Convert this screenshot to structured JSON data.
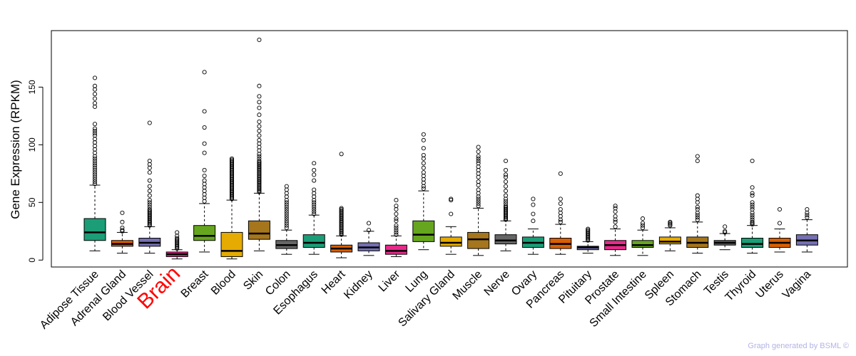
{
  "chart_data": {
    "type": "boxplot",
    "title": "",
    "xlabel": "",
    "ylabel": "Gene Expression (RPKM)",
    "ylim": [
      -6,
      199
    ],
    "yticks": [
      0,
      50,
      100,
      150
    ],
    "highlight_category": "Brain",
    "highlight_color": "#ff0000",
    "categories": [
      "Adipose Tissue",
      "Adrenal Gland",
      "Blood Vessel",
      "Brain",
      "Breast",
      "Blood",
      "Skin",
      "Colon",
      "Esophagus",
      "Heart",
      "Kidney",
      "Liver",
      "Lung",
      "Salivary Gland",
      "Muscle",
      "Nerve",
      "Ovary",
      "Pancreas",
      "Pituitary",
      "Prostate",
      "Small Intestine",
      "Spleen",
      "Stomach",
      "Testis",
      "Thyroid",
      "Uterus",
      "Vagina"
    ],
    "colors": [
      "#1b9e77",
      "#d95f02",
      "#7570b3",
      "#e7298a",
      "#66a61e",
      "#e6ab02",
      "#a6761d",
      "#666666",
      "#1b9e77",
      "#d95f02",
      "#7570b3",
      "#e7298a",
      "#66a61e",
      "#e6ab02",
      "#a6761d",
      "#666666",
      "#1b9e77",
      "#d95f02",
      "#7570b3",
      "#e7298a",
      "#66a61e",
      "#e6ab02",
      "#a6761d",
      "#666666",
      "#1b9e77",
      "#d95f02",
      "#7570b3"
    ],
    "boxes": [
      {
        "q1": 17,
        "median": 24,
        "q3": 36,
        "whisker_low": 8,
        "whisker_high": 65,
        "outliers": [
          66,
          68,
          70,
          72,
          74,
          76,
          78,
          80,
          82,
          84,
          86,
          88,
          90,
          93,
          96,
          99,
          102,
          105,
          108,
          110,
          112,
          114,
          118,
          133,
          136,
          140,
          144,
          148,
          151,
          158
        ]
      },
      {
        "q1": 12,
        "median": 14,
        "q3": 17,
        "whisker_low": 6,
        "whisker_high": 24,
        "outliers": [
          25,
          26,
          28,
          33,
          41
        ]
      },
      {
        "q1": 12,
        "median": 15,
        "q3": 19,
        "whisker_low": 6,
        "whisker_high": 29,
        "outliers": [
          30,
          31,
          32,
          33,
          34,
          35,
          36,
          37,
          38,
          39,
          40,
          41,
          42,
          43,
          44,
          46,
          48,
          50,
          52,
          56,
          60,
          64,
          69,
          76,
          80,
          83,
          86,
          119
        ]
      },
      {
        "q1": 3,
        "median": 5,
        "q3": 7,
        "whisker_low": 1,
        "whisker_high": 9,
        "outliers": [
          10,
          11,
          12,
          13,
          14,
          15,
          16,
          17,
          18,
          19,
          21,
          24
        ]
      },
      {
        "q1": 17,
        "median": 21,
        "q3": 30,
        "whisker_low": 7,
        "whisker_high": 49,
        "outliers": [
          51,
          54,
          57,
          60,
          63,
          66,
          69,
          73,
          78,
          93,
          101,
          115,
          129,
          163
        ]
      },
      {
        "q1": 3,
        "median": 8,
        "q3": 24,
        "whisker_low": 1,
        "whisker_high": 52,
        "outliers": [
          53,
          54,
          55,
          56,
          57,
          58,
          59,
          60,
          61,
          62,
          63,
          64,
          65,
          66,
          67,
          68,
          69,
          70,
          71,
          72,
          73,
          74,
          75,
          76,
          77,
          78,
          79,
          80,
          81,
          82,
          83,
          84,
          85,
          86,
          87,
          88
        ]
      },
      {
        "q1": 18,
        "median": 23,
        "q3": 34,
        "whisker_low": 8,
        "whisker_high": 58,
        "outliers": [
          59,
          60,
          61,
          62,
          63,
          64,
          65,
          66,
          67,
          68,
          69,
          70,
          71,
          72,
          73,
          74,
          75,
          76,
          77,
          78,
          79,
          80,
          81,
          82,
          83,
          84,
          85,
          86,
          88,
          90,
          92,
          95,
          98,
          101,
          104,
          108,
          112,
          116,
          120,
          126,
          132,
          137,
          142,
          151,
          191
        ]
      },
      {
        "q1": 10,
        "median": 13,
        "q3": 17,
        "whisker_low": 5,
        "whisker_high": 26,
        "outliers": [
          28,
          30,
          32,
          34,
          36,
          38,
          40,
          42,
          44,
          46,
          48,
          50,
          52,
          55,
          58,
          61,
          64
        ]
      },
      {
        "q1": 11,
        "median": 15,
        "q3": 22,
        "whisker_low": 5,
        "whisker_high": 39,
        "outliers": [
          40,
          42,
          44,
          46,
          48,
          50,
          52,
          55,
          58,
          61,
          69,
          74,
          78,
          84
        ]
      },
      {
        "q1": 7,
        "median": 10,
        "q3": 13,
        "whisker_low": 2,
        "whisker_high": 21,
        "outliers": [
          22,
          23,
          24,
          25,
          26,
          27,
          28,
          29,
          30,
          31,
          32,
          33,
          34,
          35,
          36,
          37,
          38,
          39,
          40,
          41,
          42,
          43,
          44,
          45,
          92
        ]
      },
      {
        "q1": 8,
        "median": 11,
        "q3": 15,
        "whisker_low": 4,
        "whisker_high": 25,
        "outliers": [
          26,
          32
        ]
      },
      {
        "q1": 5,
        "median": 8,
        "q3": 13,
        "whisker_low": 3,
        "whisker_high": 21,
        "outliers": [
          22,
          24,
          26,
          28,
          30,
          34,
          36,
          40,
          44,
          47,
          52
        ]
      },
      {
        "q1": 16,
        "median": 22,
        "q3": 34,
        "whisker_low": 9,
        "whisker_high": 60,
        "outliers": [
          62,
          64,
          67,
          70,
          73,
          76,
          80,
          84,
          88,
          91,
          97,
          104,
          109
        ]
      },
      {
        "q1": 12,
        "median": 15,
        "q3": 20,
        "whisker_low": 5,
        "whisker_high": 29,
        "outliers": [
          40,
          52,
          53
        ]
      },
      {
        "q1": 10,
        "median": 18,
        "q3": 24,
        "whisker_low": 4,
        "whisker_high": 45,
        "outliers": [
          47,
          49,
          51,
          53,
          55,
          58,
          61,
          65,
          68,
          72,
          75,
          78,
          81,
          84,
          86,
          88,
          90,
          94,
          98
        ]
      },
      {
        "q1": 14,
        "median": 17,
        "q3": 22,
        "whisker_low": 8,
        "whisker_high": 34,
        "outliers": [
          35,
          36,
          37,
          38,
          39,
          40,
          41,
          42,
          43,
          44,
          45,
          46,
          47,
          49,
          51,
          53,
          56,
          60,
          64,
          68,
          72,
          74,
          78,
          86
        ]
      },
      {
        "q1": 11,
        "median": 15,
        "q3": 20,
        "whisker_low": 5,
        "whisker_high": 27,
        "outliers": [
          34,
          40,
          48,
          53
        ]
      },
      {
        "q1": 10,
        "median": 14,
        "q3": 19,
        "whisker_low": 5,
        "whisker_high": 31,
        "outliers": [
          33,
          35,
          38,
          41,
          44,
          49,
          53,
          75
        ]
      },
      {
        "q1": 9,
        "median": 11,
        "q3": 12,
        "whisker_low": 6,
        "whisker_high": 16,
        "outliers": [
          17,
          18,
          19,
          20,
          21,
          22,
          23,
          24,
          25,
          26,
          27
        ]
      },
      {
        "q1": 9,
        "median": 13,
        "q3": 17,
        "whisker_low": 4,
        "whisker_high": 27,
        "outliers": [
          29,
          33,
          35,
          38,
          42,
          45,
          47
        ]
      },
      {
        "q1": 11,
        "median": 13,
        "q3": 17,
        "whisker_low": 4,
        "whisker_high": 26,
        "outliers": [
          28,
          30,
          32,
          36
        ]
      },
      {
        "q1": 14,
        "median": 16,
        "q3": 20,
        "whisker_low": 8,
        "whisker_high": 28,
        "outliers": [
          30,
          31,
          32,
          33
        ]
      },
      {
        "q1": 11,
        "median": 15,
        "q3": 20,
        "whisker_low": 6,
        "whisker_high": 33,
        "outliers": [
          35,
          37,
          39,
          41,
          44,
          46,
          50,
          53,
          56,
          86,
          90
        ]
      },
      {
        "q1": 13,
        "median": 15,
        "q3": 17,
        "whisker_low": 9,
        "whisker_high": 23,
        "outliers": [
          24,
          25,
          29
        ]
      },
      {
        "q1": 11,
        "median": 14,
        "q3": 19,
        "whisker_low": 6,
        "whisker_high": 30,
        "outliers": [
          31,
          32,
          33,
          35,
          37,
          39,
          41,
          44,
          46,
          48,
          50,
          56,
          58,
          63,
          86
        ]
      },
      {
        "q1": 11,
        "median": 15,
        "q3": 19,
        "whisker_low": 7,
        "whisker_high": 27,
        "outliers": [
          32,
          44
        ]
      },
      {
        "q1": 13,
        "median": 17,
        "q3": 22,
        "whisker_low": 7,
        "whisker_high": 35,
        "outliers": [
          37,
          39,
          41,
          44
        ]
      }
    ]
  },
  "footer_text": "Graph generated by BSML ©"
}
